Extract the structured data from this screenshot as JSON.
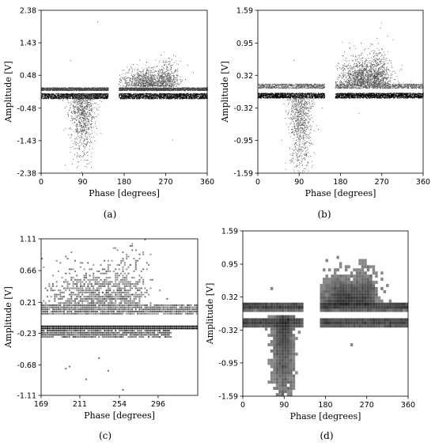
{
  "chart_data": [
    {
      "id": "a",
      "type": "scatter",
      "panel_label": "(a)",
      "xlabel": "Phase [degrees]",
      "ylabel": "Amplitude [V]",
      "xlim": [
        0,
        360
      ],
      "ylim": [
        -2.38,
        2.38
      ],
      "xticks": [
        "0",
        "90",
        "180",
        "270",
        "360"
      ],
      "yticks": [
        "2.38",
        "1.43",
        "0.48",
        "-0.48",
        "-1.43",
        "-2.38"
      ],
      "render": "points",
      "gap_deg": [
        145,
        168
      ],
      "bands": [
        {
          "x0": 0,
          "x1": 145,
          "y0": 0.04,
          "y1": 0.13,
          "density": 1.0,
          "shade": 0.35
        },
        {
          "x0": 168,
          "x1": 360,
          "y0": 0.04,
          "y1": 0.13,
          "density": 1.0,
          "shade": 0.35
        },
        {
          "x0": 0,
          "x1": 145,
          "y0": -0.2,
          "y1": -0.04,
          "density": 1.0,
          "shade": 0.05
        },
        {
          "x0": 168,
          "x1": 360,
          "y0": -0.2,
          "y1": -0.04,
          "density": 1.0,
          "shade": 0.05
        }
      ],
      "lobes": [
        {
          "x": 90,
          "xw": 28,
          "ypeak": -0.95,
          "ywidth": 0.9,
          "count": 900
        },
        {
          "x": 230,
          "xw": 55,
          "ypeak": 0.3,
          "ywidth": 0.35,
          "count": 900
        },
        {
          "x": 275,
          "xw": 25,
          "ypeak": 0.45,
          "ywidth": 0.4,
          "count": 300
        }
      ],
      "outliers": [
        {
          "x": 122,
          "y": 2.05
        },
        {
          "x": 108,
          "y": -2.2
        },
        {
          "x": 63,
          "y": 0.92
        },
        {
          "x": 242,
          "y": 0.72
        },
        {
          "x": 284,
          "y": -1.4
        }
      ]
    },
    {
      "id": "b",
      "type": "scatter",
      "panel_label": "(b)",
      "xlabel": "Phase [degrees]",
      "ylabel": "Amplitude [V]",
      "xlim": [
        0,
        360
      ],
      "ylim": [
        -1.59,
        1.59
      ],
      "xticks": [
        "0",
        "90",
        "180",
        "270",
        "360"
      ],
      "yticks": [
        "1.59",
        "0.95",
        "0.32",
        "-0.32",
        "-0.95",
        "-1.59"
      ],
      "render": "points",
      "gap_deg": [
        145,
        168
      ],
      "bands": [
        {
          "x0": 0,
          "x1": 145,
          "y0": 0.07,
          "y1": 0.16,
          "density": 0.6,
          "shade": 0.45
        },
        {
          "x0": 168,
          "x1": 360,
          "y0": 0.07,
          "y1": 0.16,
          "density": 0.6,
          "shade": 0.45
        },
        {
          "x0": 0,
          "x1": 145,
          "y0": -0.12,
          "y1": -0.02,
          "density": 1.0,
          "shade": 0.0
        },
        {
          "x0": 168,
          "x1": 360,
          "y0": -0.12,
          "y1": -0.02,
          "density": 1.0,
          "shade": 0.0
        }
      ],
      "lobes": [
        {
          "x": 92,
          "xw": 25,
          "ypeak": -0.8,
          "ywidth": 0.55,
          "count": 900
        },
        {
          "x": 230,
          "xw": 55,
          "ypeak": 0.3,
          "ywidth": 0.28,
          "count": 1100
        },
        {
          "x": 265,
          "xw": 25,
          "ypeak": 0.45,
          "ywidth": 0.25,
          "count": 300
        }
      ],
      "outliers": [
        {
          "x": 270,
          "y": 0.83
        },
        {
          "x": 78,
          "y": 0.62
        },
        {
          "x": 100,
          "y": -1.5
        },
        {
          "x": 220,
          "y": -0.42
        }
      ]
    },
    {
      "id": "c",
      "type": "scatter",
      "panel_label": "(c)",
      "xlabel": "Phase [degrees]",
      "ylabel": "Amplitude [V]",
      "xlim": [
        169,
        339
      ],
      "ylim": [
        -1.11,
        1.11
      ],
      "xticks": [
        "169",
        "211",
        "254",
        "296"
      ],
      "yticks": [
        "1.11",
        "0.66",
        "0.21",
        "-0.23",
        "-0.68",
        "-1.11"
      ],
      "render": "quantized",
      "grid_x_step": 2,
      "grid_y_step": 0.03,
      "gap_deg": [
        339,
        339
      ],
      "bands": [
        {
          "x0": 169,
          "x1": 339,
          "y0": 0.04,
          "y1": 0.17,
          "density": 1.0,
          "shade": 0.45
        },
        {
          "x0": 169,
          "x1": 339,
          "y0": -0.17,
          "y1": -0.13,
          "density": 1.0,
          "shade": 0.0
        },
        {
          "x0": 169,
          "x1": 310,
          "y0": -0.28,
          "y1": -0.19,
          "density": 0.7,
          "shade": 0.35
        }
      ],
      "lobes": [
        {
          "x": 225,
          "xw": 45,
          "ypeak": 0.3,
          "ywidth": 0.25,
          "count": 700
        },
        {
          "x": 262,
          "xw": 22,
          "ypeak": 0.5,
          "ywidth": 0.25,
          "count": 250
        }
      ],
      "outliers": [
        {
          "x": 200,
          "y": -0.72
        },
        {
          "x": 195,
          "y": -0.74
        },
        {
          "x": 218,
          "y": -0.9
        },
        {
          "x": 258,
          "y": -1.05
        },
        {
          "x": 242,
          "y": -0.77
        },
        {
          "x": 232,
          "y": -0.58
        }
      ]
    },
    {
      "id": "d",
      "type": "heatmap",
      "panel_label": "(d)",
      "xlabel": "Phase [degrees]",
      "ylabel": "Amplitude [V]",
      "xlim": [
        0,
        360
      ],
      "ylim": [
        -1.59,
        1.59
      ],
      "xticks": [
        "0",
        "90",
        "180",
        "270",
        "360"
      ],
      "yticks": [
        "1.59",
        "0.95",
        "0.32",
        "-0.32",
        "-0.95",
        "-1.59"
      ],
      "render": "heatmap",
      "grid_x_step": 6,
      "grid_y_step": 0.06,
      "gap_deg": [
        130,
        170
      ],
      "bands": [
        {
          "x0": 0,
          "x1": 130,
          "y0": 0.07,
          "y1": 0.2,
          "density": 1.0,
          "shade": 0.2
        },
        {
          "x0": 170,
          "x1": 360,
          "y0": 0.07,
          "y1": 0.2,
          "density": 1.0,
          "shade": 0.2
        },
        {
          "x0": 0,
          "x1": 130,
          "y0": -0.24,
          "y1": -0.1,
          "density": 1.0,
          "shade": 0.1
        },
        {
          "x0": 170,
          "x1": 360,
          "y0": -0.24,
          "y1": -0.1,
          "density": 1.0,
          "shade": 0.1
        }
      ],
      "lobes": [
        {
          "x": 88,
          "xw": 22,
          "ypeak": -0.85,
          "ywidth": 0.6,
          "count": 1800
        },
        {
          "x": 225,
          "xw": 52,
          "ypeak": 0.3,
          "ywidth": 0.16,
          "count": 1800
        },
        {
          "x": 270,
          "xw": 20,
          "ypeak": 0.36,
          "ywidth": 0.12,
          "count": 500
        }
      ],
      "outliers": [
        {
          "x": 212,
          "y": 0.7
        },
        {
          "x": 100,
          "y": -1.35
        },
        {
          "x": 235,
          "y": -0.6
        },
        {
          "x": 60,
          "y": 0.5
        }
      ]
    }
  ]
}
